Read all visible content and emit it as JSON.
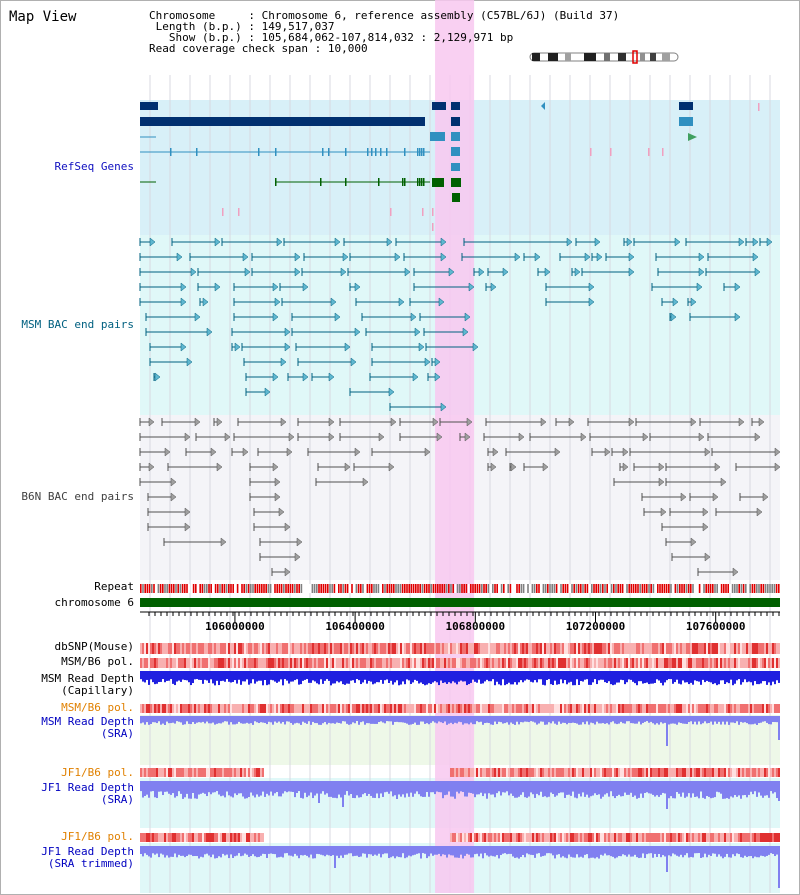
{
  "title": "Map View",
  "info": {
    "chromosome_key": "Chromosome",
    "chromosome_value": "Chromosome 6, reference assembly (C57BL/6J) (Build 37)",
    "length_key": "Length (b.p.)",
    "length_value": "149,517,037",
    "show_key": "Show (b.p.)",
    "show_value": "105,684,062-107,814,032 : 2,129,971 bp",
    "coverage_key": "Read coverage check span",
    "coverage_value": "10,000"
  },
  "view_range": {
    "start": 105684062,
    "end": 107814032
  },
  "tracks": {
    "refseq": {
      "label": "RefSeq Genes",
      "color": "#1010c0"
    },
    "msm_bac": {
      "label": "MSM BAC end pairs",
      "color": "#006080"
    },
    "b6n_bac": {
      "label": "B6N BAC end pairs",
      "color": "#404040"
    },
    "repeat": {
      "label": "Repeat"
    },
    "chromosome": {
      "label": "chromosome 6"
    },
    "dbsnp": {
      "label": "dbSNP(Mouse)"
    },
    "msm_pol": {
      "label": "MSM/B6 pol."
    },
    "msm_depth_cap": {
      "label": "MSM Read Depth\n(Capillary)"
    },
    "msm_pol2": {
      "label": "MSM/B6 pol.",
      "color": "#e08000"
    },
    "msm_depth_sra": {
      "label": "MSM Read Depth\n(SRA)",
      "color": "#0000c0"
    },
    "jf1_pol": {
      "label": "JF1/B6 pol.",
      "color": "#e08000"
    },
    "jf1_depth_sra": {
      "label": "JF1 Read Depth\n(SRA)",
      "color": "#0000c0"
    },
    "jf1_pol2": {
      "label": "JF1/B6 pol.",
      "color": "#e08000"
    },
    "jf1_depth_trim": {
      "label": "JF1 Read Depth\n(SRA trimmed)",
      "color": "#0000c0"
    }
  },
  "axis": {
    "ticks": [
      {
        "pos": 106000000,
        "label": "106000000"
      },
      {
        "pos": 106400000,
        "label": "106400000"
      },
      {
        "pos": 106800000,
        "label": "106800000"
      },
      {
        "pos": 107200000,
        "label": "107200000"
      },
      {
        "pos": 107600000,
        "label": "107600000"
      }
    ]
  },
  "highlight": {
    "start": 106666000,
    "end": 106796000,
    "color": "#f8c8f0"
  },
  "colors": {
    "refseq_bg": "#d8f0f8",
    "msm_bg": "#e0f8f8",
    "b6n_bg": "#f4f4f8",
    "refseq_dark": "#003070",
    "refseq_mid": "#3090c0",
    "refseq_green": "#006000",
    "pink_marks": "#f0a0c0",
    "repeat_red": "#e00000",
    "repeat_gray": "#808080",
    "chromosome_green": "#006000",
    "depth_blue": "#2020e0",
    "depth_light": "#8080f0",
    "pol_red": "#f04040"
  }
}
